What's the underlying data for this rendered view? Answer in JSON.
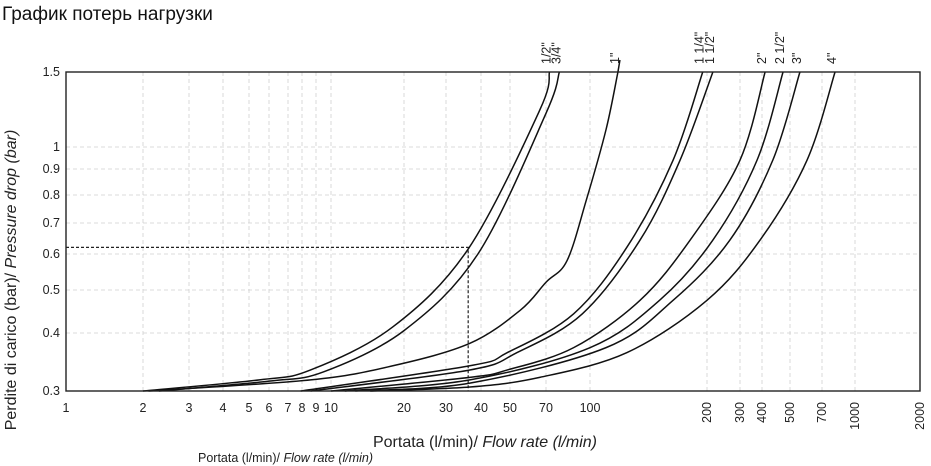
{
  "page_title": "График потерь нагрузки",
  "chart_data": {
    "type": "line",
    "title": "",
    "xlabel": "Portata (l/min)/ ",
    "xlabel_italic": "Flow rate (l/min)",
    "xlabel_secondary": "Portata (l/min)/ ",
    "xlabel_secondary_italic": "Flow rate (l/min)",
    "ylabel": "Perdite di carico (bar)/ ",
    "ylabel_italic": "Pressure drop (bar)",
    "x_scale": "log",
    "y_scale": "log",
    "xlim": [
      1,
      2000
    ],
    "ylim": [
      0.3,
      1.5
    ],
    "grid": true,
    "x_ticks": [
      "1",
      "2",
      "3",
      "4",
      "5",
      "6",
      "7",
      "8",
      "9",
      "10",
      "20",
      "30",
      "40",
      "50",
      "70",
      "100",
      "200",
      "300",
      "400",
      "500",
      "700",
      "1000",
      "2000"
    ],
    "y_ticks": [
      "0.3",
      "0.4",
      "0.5",
      "0.6",
      "0.7",
      "0.8",
      "0.9",
      "1",
      "1.5"
    ],
    "reference_point": {
      "flow": 36,
      "pressure": 0.62
    },
    "series": [
      {
        "name": "1/2\"",
        "points": [
          [
            2,
            0.3
          ],
          [
            5.5,
            0.317
          ],
          [
            8.6,
            0.333
          ],
          [
            18,
            0.413
          ],
          [
            36,
            0.615
          ],
          [
            66,
            1.22
          ],
          [
            72,
            1.5
          ]
        ]
      },
      {
        "name": "3/4\"",
        "points": [
          [
            2.3,
            0.3
          ],
          [
            6,
            0.315
          ],
          [
            9.5,
            0.33
          ],
          [
            20,
            0.405
          ],
          [
            39,
            0.6
          ],
          [
            70,
            1.2
          ],
          [
            78,
            1.5
          ]
        ]
      },
      {
        "name": "1\"",
        "points": [
          [
            2.1,
            0.3
          ],
          [
            8.6,
            0.317
          ],
          [
            18,
            0.34
          ],
          [
            36.5,
            0.38
          ],
          [
            55,
            0.45
          ],
          [
            70,
            0.52
          ],
          [
            83,
            0.58
          ],
          [
            97,
            0.78
          ],
          [
            110,
            1.1
          ],
          [
            118,
            1.5
          ]
        ]
      },
      {
        "name": "1 1/4\"",
        "points": [
          [
            7.9,
            0.3
          ],
          [
            36.5,
            0.34
          ],
          [
            49,
            0.363
          ],
          [
            87.6,
            0.442
          ],
          [
            124.5,
            0.621
          ],
          [
            163.6,
            0.939
          ],
          [
            195,
            1.5
          ]
        ]
      },
      {
        "name": "1 1/2\"",
        "points": [
          [
            8.6,
            0.3
          ],
          [
            36.5,
            0.333
          ],
          [
            53.4,
            0.363
          ],
          [
            94,
            0.442
          ],
          [
            134.5,
            0.643
          ],
          [
            170.5,
            0.939
          ],
          [
            215,
            1.5
          ]
        ]
      },
      {
        "name": "2\"",
        "points": [
          [
            10,
            0.3
          ],
          [
            36.5,
            0.321
          ],
          [
            49,
            0.333
          ],
          [
            87.6,
            0.372
          ],
          [
            134.5,
            0.474
          ],
          [
            181,
            0.643
          ],
          [
            300,
            0.939
          ],
          [
            410,
            1.5
          ]
        ]
      },
      {
        "name": "2 1/2\"",
        "points": [
          [
            11.4,
            0.3
          ],
          [
            36.5,
            0.317
          ],
          [
            100,
            0.372
          ],
          [
            151,
            0.474
          ],
          [
            215,
            0.643
          ],
          [
            375,
            0.939
          ],
          [
            473,
            1.5
          ]
        ]
      },
      {
        "name": "3\"",
        "points": [
          [
            12.6,
            0.3
          ],
          [
            36.5,
            0.312
          ],
          [
            110,
            0.372
          ],
          [
            163.6,
            0.474
          ],
          [
            265,
            0.643
          ],
          [
            436,
            0.939
          ],
          [
            555,
            1.5
          ]
        ]
      },
      {
        "name": "4\"",
        "points": [
          [
            14.5,
            0.3
          ],
          [
            36.5,
            0.306
          ],
          [
            66,
            0.321
          ],
          [
            124.5,
            0.363
          ],
          [
            200,
            0.474
          ],
          [
            390,
            0.643
          ],
          [
            598,
            0.939
          ],
          [
            806,
            1.5
          ]
        ]
      }
    ]
  }
}
